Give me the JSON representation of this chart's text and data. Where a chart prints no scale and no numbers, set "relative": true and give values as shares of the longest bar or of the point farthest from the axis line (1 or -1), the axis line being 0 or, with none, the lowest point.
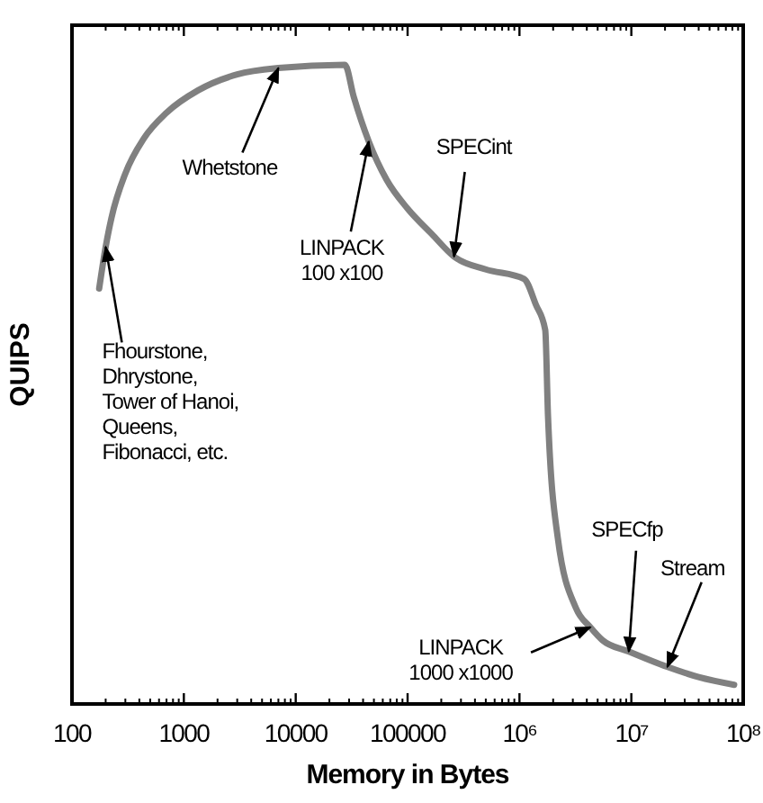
{
  "chart_data": {
    "type": "line",
    "xlabel": "Memory in Bytes",
    "ylabel": "QUIPS",
    "log": "x",
    "relative": true,
    "xlim": [
      100,
      100000000
    ],
    "xticks": [
      100,
      1000,
      10000,
      100000,
      {
        "value": 1000000,
        "label": "10⁶"
      },
      {
        "value": 10000000,
        "label": "10⁷"
      },
      {
        "value": 100000000,
        "label": "10⁸"
      }
    ],
    "x": [
      175,
      200,
      225,
      300,
      440,
      700,
      1340,
      3000,
      7000,
      27500,
      33000,
      45000,
      65000,
      100000,
      165000,
      260000,
      500000,
      1100000,
      1400000,
      1700000,
      1800000,
      2200000,
      3200000,
      4300000,
      5500000,
      9500000,
      21000000,
      40000000,
      83000000
    ],
    "series": [
      {
        "color": "#808080",
        "values": [
          0.65,
          0.715,
          0.76,
          0.83,
          0.885,
          0.925,
          0.96,
          0.985,
          0.995,
          1,
          0.95,
          0.88,
          0.82,
          0.775,
          0.735,
          0.7,
          0.68,
          0.665,
          0.625,
          0.585,
          0.45,
          0.26,
          0.15,
          0.12,
          0.1,
          0.082,
          0.058,
          0.042,
          0.03
        ]
      }
    ],
    "grid": false,
    "marker": "none",
    "line_style": "solid",
    "annotations": [
      {
        "text": "Whetstone",
        "x": 7000,
        "y": 0.995
      },
      {
        "text": "Fhourstone,\nDhrystone,\nTower of Hanoi,\nQueens,\nFibonacci, etc.",
        "x": 200,
        "y": 0.715
      },
      {
        "text": "LINPACK\n100 x100",
        "x": 45000,
        "y": 0.88
      },
      {
        "text": "SPECint",
        "x": 260000,
        "y": 0.7
      },
      {
        "text": "LINPACK\n1000 x1000",
        "x": 4300000,
        "y": 0.12
      },
      {
        "text": "SPECfp",
        "x": 9500000,
        "y": 0.082
      },
      {
        "text": "Stream",
        "x": 21000000,
        "y": 0.058
      }
    ]
  }
}
